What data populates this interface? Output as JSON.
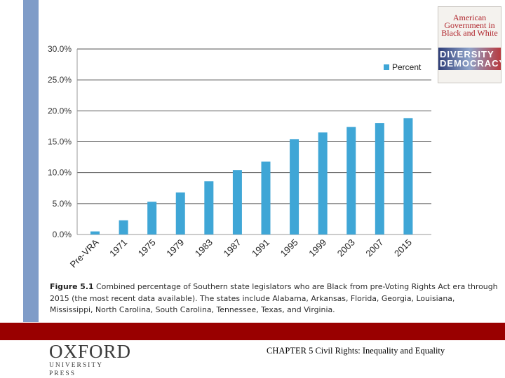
{
  "chart_data": {
    "type": "bar",
    "categories": [
      "Pre-VRA",
      "1971",
      "1975",
      "1979",
      "1983",
      "1987",
      "1991",
      "1995",
      "1999",
      "2003",
      "2007",
      "2015"
    ],
    "series": [
      {
        "name": "Percent",
        "values": [
          0.5,
          2.3,
          5.3,
          6.8,
          8.6,
          10.4,
          11.8,
          15.4,
          16.5,
          17.4,
          18.0,
          18.8
        ]
      }
    ],
    "ylim": [
      0,
      30
    ],
    "yticks": [
      "0.0%",
      "5.0%",
      "10.0%",
      "15.0%",
      "20.0%",
      "25.0%",
      "30.0%"
    ],
    "grid": true,
    "legend_position": "top-right",
    "bar_color": "#3fa6d6",
    "title": "",
    "xlabel": "",
    "ylabel": ""
  },
  "caption": {
    "label": "Figure 5.1",
    "text": "Combined percentage of Southern state legislators who are Black from pre-Voting Rights Act era through 2015 (the most recent data available). The states include Alabama, Arkansas, Florida, Georgia, Louisiana, Mississippi, North Carolina, South Carolina, Tennessee, Texas, and Virginia."
  },
  "book_cover": {
    "title": "American Government in Black and White",
    "subtitle": "",
    "band_text": "DIVERSITY DEMOCRACY",
    "colors": {
      "title": "#b0262d",
      "band": "#2e3e78"
    }
  },
  "footer": {
    "logo_main": "OXFORD",
    "logo_sub": "UNIVERSITY PRESS",
    "chapter_title": "CHAPTER 5 Civil Rights: Inequality and Equality",
    "band_color": "#990000"
  }
}
